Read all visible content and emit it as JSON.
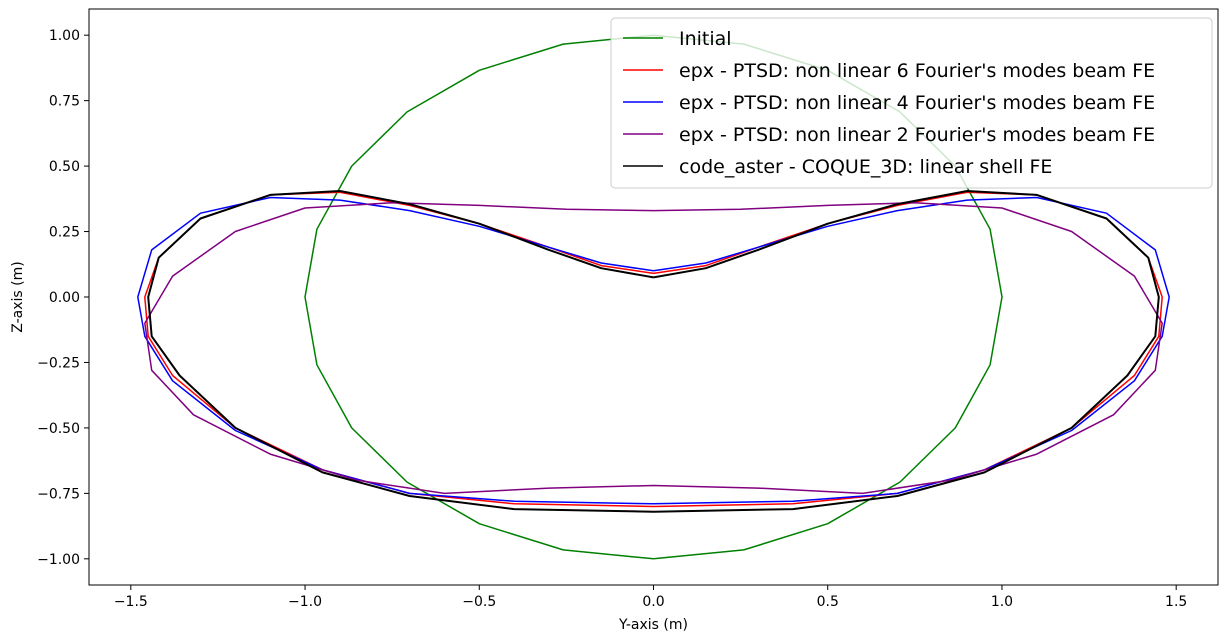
{
  "chart_data": {
    "type": "line",
    "title": "",
    "xlabel": "Y-axis (m)",
    "ylabel": "Z-axis (m)",
    "xlim": [
      -1.62,
      1.62
    ],
    "ylim": [
      -1.1,
      1.1
    ],
    "xticks": [
      -1.5,
      -1.0,
      -0.5,
      0.0,
      0.5,
      1.0,
      1.5
    ],
    "xtick_labels": [
      "−1.5",
      "−1.0",
      "−0.5",
      "0.0",
      "0.5",
      "1.0",
      "1.5"
    ],
    "yticks": [
      1.0,
      0.75,
      0.5,
      0.25,
      0.0,
      -0.25,
      -0.5,
      -0.75,
      -1.0
    ],
    "ytick_labels": [
      "1.00",
      "0.75",
      "0.50",
      "0.25",
      "0.00",
      "−0.25",
      "−0.50",
      "−0.75",
      "−1.00"
    ],
    "grid": false,
    "legend_position": "top-right",
    "series": [
      {
        "name": "Initial",
        "color": "#008000",
        "points": [
          [
            0.0,
            1.0
          ],
          [
            0.259,
            0.966
          ],
          [
            0.5,
            0.866
          ],
          [
            0.707,
            0.707
          ],
          [
            0.866,
            0.5
          ],
          [
            0.966,
            0.259
          ],
          [
            1.0,
            0.0
          ],
          [
            0.966,
            -0.259
          ],
          [
            0.866,
            -0.5
          ],
          [
            0.707,
            -0.707
          ],
          [
            0.5,
            -0.866
          ],
          [
            0.259,
            -0.966
          ],
          [
            0.0,
            -1.0
          ],
          [
            -0.259,
            -0.966
          ],
          [
            -0.5,
            -0.866
          ],
          [
            -0.707,
            -0.707
          ],
          [
            -0.866,
            -0.5
          ],
          [
            -0.966,
            -0.259
          ],
          [
            -1.0,
            0.0
          ],
          [
            -0.966,
            0.259
          ],
          [
            -0.866,
            0.5
          ],
          [
            -0.707,
            0.707
          ],
          [
            -0.5,
            0.866
          ],
          [
            -0.259,
            0.966
          ],
          [
            0.0,
            1.0
          ]
        ]
      },
      {
        "name": "epx - PTSD: non linear 6 Fourier's modes beam FE",
        "color": "#ff0000",
        "points": [
          [
            0.0,
            0.09
          ],
          [
            0.15,
            0.12
          ],
          [
            0.3,
            0.19
          ],
          [
            0.5,
            0.28
          ],
          [
            0.7,
            0.35
          ],
          [
            0.9,
            0.4
          ],
          [
            1.1,
            0.39
          ],
          [
            1.3,
            0.3
          ],
          [
            1.42,
            0.15
          ],
          [
            1.46,
            0.0
          ],
          [
            1.45,
            -0.15
          ],
          [
            1.38,
            -0.3
          ],
          [
            1.2,
            -0.5
          ],
          [
            0.95,
            -0.66
          ],
          [
            0.7,
            -0.75
          ],
          [
            0.4,
            -0.79
          ],
          [
            0.0,
            -0.8
          ],
          [
            -0.4,
            -0.79
          ],
          [
            -0.7,
            -0.75
          ],
          [
            -0.95,
            -0.66
          ],
          [
            -1.2,
            -0.5
          ],
          [
            -1.38,
            -0.3
          ],
          [
            -1.45,
            -0.15
          ],
          [
            -1.46,
            0.0
          ],
          [
            -1.42,
            0.15
          ],
          [
            -1.3,
            0.3
          ],
          [
            -1.1,
            0.39
          ],
          [
            -0.9,
            0.4
          ],
          [
            -0.7,
            0.35
          ],
          [
            -0.5,
            0.28
          ],
          [
            -0.3,
            0.19
          ],
          [
            -0.15,
            0.12
          ],
          [
            0.0,
            0.09
          ]
        ]
      },
      {
        "name": "epx - PTSD: non linear 4 Fourier's modes beam FE",
        "color": "#0000ff",
        "points": [
          [
            0.0,
            0.1
          ],
          [
            0.15,
            0.13
          ],
          [
            0.3,
            0.19
          ],
          [
            0.5,
            0.27
          ],
          [
            0.7,
            0.33
          ],
          [
            0.9,
            0.37
          ],
          [
            1.1,
            0.38
          ],
          [
            1.3,
            0.32
          ],
          [
            1.44,
            0.18
          ],
          [
            1.48,
            0.0
          ],
          [
            1.46,
            -0.15
          ],
          [
            1.38,
            -0.32
          ],
          [
            1.2,
            -0.51
          ],
          [
            0.95,
            -0.66
          ],
          [
            0.7,
            -0.75
          ],
          [
            0.4,
            -0.78
          ],
          [
            0.0,
            -0.79
          ],
          [
            -0.4,
            -0.78
          ],
          [
            -0.7,
            -0.75
          ],
          [
            -0.95,
            -0.66
          ],
          [
            -1.2,
            -0.51
          ],
          [
            -1.38,
            -0.32
          ],
          [
            -1.46,
            -0.15
          ],
          [
            -1.48,
            0.0
          ],
          [
            -1.44,
            0.18
          ],
          [
            -1.3,
            0.32
          ],
          [
            -1.1,
            0.38
          ],
          [
            -0.9,
            0.37
          ],
          [
            -0.7,
            0.33
          ],
          [
            -0.5,
            0.27
          ],
          [
            -0.3,
            0.19
          ],
          [
            -0.15,
            0.13
          ],
          [
            0.0,
            0.1
          ]
        ]
      },
      {
        "name": "epx - PTSD: non linear 2 Fourier's modes beam FE",
        "color": "#800080",
        "points": [
          [
            0.0,
            0.33
          ],
          [
            0.25,
            0.335
          ],
          [
            0.5,
            0.35
          ],
          [
            0.75,
            0.36
          ],
          [
            1.0,
            0.34
          ],
          [
            1.2,
            0.25
          ],
          [
            1.38,
            0.08
          ],
          [
            1.46,
            -0.1
          ],
          [
            1.44,
            -0.28
          ],
          [
            1.32,
            -0.45
          ],
          [
            1.1,
            -0.6
          ],
          [
            0.85,
            -0.7
          ],
          [
            0.6,
            -0.75
          ],
          [
            0.3,
            -0.73
          ],
          [
            0.0,
            -0.72
          ],
          [
            -0.3,
            -0.73
          ],
          [
            -0.6,
            -0.75
          ],
          [
            -0.85,
            -0.7
          ],
          [
            -1.1,
            -0.6
          ],
          [
            -1.32,
            -0.45
          ],
          [
            -1.44,
            -0.28
          ],
          [
            -1.46,
            -0.1
          ],
          [
            -1.38,
            0.08
          ],
          [
            -1.2,
            0.25
          ],
          [
            -1.0,
            0.34
          ],
          [
            -0.75,
            0.36
          ],
          [
            -0.5,
            0.35
          ],
          [
            -0.25,
            0.335
          ],
          [
            0.0,
            0.33
          ]
        ]
      },
      {
        "name": "code_aster - COQUE_3D: linear shell FE",
        "color": "#000000",
        "points": [
          [
            0.0,
            0.075
          ],
          [
            0.15,
            0.11
          ],
          [
            0.3,
            0.18
          ],
          [
            0.5,
            0.28
          ],
          [
            0.7,
            0.355
          ],
          [
            0.9,
            0.405
          ],
          [
            1.1,
            0.39
          ],
          [
            1.3,
            0.3
          ],
          [
            1.42,
            0.15
          ],
          [
            1.45,
            0.0
          ],
          [
            1.44,
            -0.15
          ],
          [
            1.36,
            -0.3
          ],
          [
            1.2,
            -0.5
          ],
          [
            0.95,
            -0.67
          ],
          [
            0.7,
            -0.76
          ],
          [
            0.4,
            -0.81
          ],
          [
            0.0,
            -0.82
          ],
          [
            -0.4,
            -0.81
          ],
          [
            -0.7,
            -0.76
          ],
          [
            -0.95,
            -0.67
          ],
          [
            -1.2,
            -0.5
          ],
          [
            -1.36,
            -0.3
          ],
          [
            -1.44,
            -0.15
          ],
          [
            -1.45,
            0.0
          ],
          [
            -1.42,
            0.15
          ],
          [
            -1.3,
            0.3
          ],
          [
            -1.1,
            0.39
          ],
          [
            -0.9,
            0.405
          ],
          [
            -0.7,
            0.355
          ],
          [
            -0.5,
            0.28
          ],
          [
            -0.3,
            0.18
          ],
          [
            -0.15,
            0.11
          ],
          [
            0.0,
            0.075
          ]
        ]
      }
    ]
  }
}
